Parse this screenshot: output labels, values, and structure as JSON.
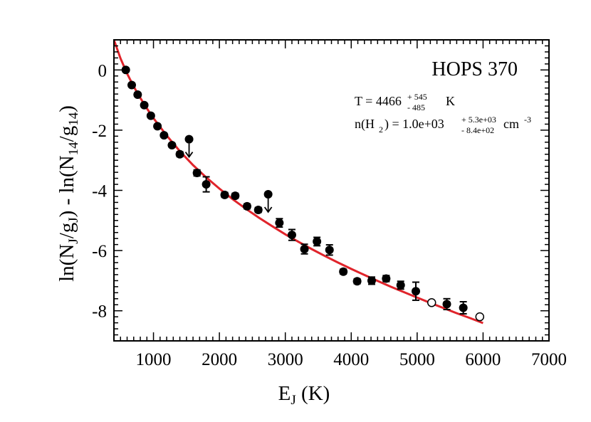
{
  "chart_data": {
    "type": "scatter",
    "title": "HOPS 370",
    "xlabel": {
      "base": "E",
      "sub": "J",
      "tail": " (K)"
    },
    "ylabel": {
      "p1": "ln(N",
      "s1": "J",
      "p2": "/g",
      "s2": "J",
      "p3": ") - ln(N",
      "s3": "14",
      "p4": "/g",
      "s4": "14",
      "p5": ")"
    },
    "xlim": [
      400,
      7000
    ],
    "ylim": [
      -9,
      1
    ],
    "xticks": [
      1000,
      2000,
      3000,
      4000,
      5000,
      6000,
      7000
    ],
    "yticks": [
      0,
      -2,
      -4,
      -6,
      -8
    ],
    "annotation": {
      "temp_prefix": "T = 4466",
      "temp_sup": "+ 545",
      "temp_sub": "- 485",
      "temp_unit": "K",
      "dens_prefix": "n(H",
      "dens_sub": "2",
      "dens_mid": ") =  1.0e+03",
      "dens_sup": "+ 5.3e+03",
      "dens_sub2": "- 8.4e+02",
      "dens_unit": "cm",
      "dens_unit_sup": "-3"
    },
    "detections": [
      {
        "x": 580,
        "y": 0.0,
        "err": 0.05
      },
      {
        "x": 670,
        "y": -0.5,
        "err": 0.05
      },
      {
        "x": 760,
        "y": -0.82,
        "err": 0.05
      },
      {
        "x": 860,
        "y": -1.17,
        "err": 0.05
      },
      {
        "x": 960,
        "y": -1.52,
        "err": 0.05
      },
      {
        "x": 1060,
        "y": -1.87,
        "err": 0.05
      },
      {
        "x": 1160,
        "y": -2.17,
        "err": 0.05
      },
      {
        "x": 1280,
        "y": -2.5,
        "err": 0.05
      },
      {
        "x": 1400,
        "y": -2.8,
        "err": 0.08
      },
      {
        "x": 1660,
        "y": -3.42,
        "err": 0.1
      },
      {
        "x": 1800,
        "y": -3.8,
        "err": 0.25
      },
      {
        "x": 2080,
        "y": -4.15,
        "err": 0.08
      },
      {
        "x": 2240,
        "y": -4.18,
        "err": 0.08
      },
      {
        "x": 2420,
        "y": -4.53,
        "err": 0.08
      },
      {
        "x": 2590,
        "y": -4.65,
        "err": 0.08
      },
      {
        "x": 2910,
        "y": -5.08,
        "err": 0.14
      },
      {
        "x": 3100,
        "y": -5.48,
        "err": 0.18
      },
      {
        "x": 3290,
        "y": -5.95,
        "err": 0.16
      },
      {
        "x": 3480,
        "y": -5.7,
        "err": 0.14
      },
      {
        "x": 3670,
        "y": -5.98,
        "err": 0.17
      },
      {
        "x": 3880,
        "y": -6.7,
        "err": 0.08
      },
      {
        "x": 4090,
        "y": -7.02,
        "err": 0.08
      },
      {
        "x": 4310,
        "y": -7.0,
        "err": 0.12
      },
      {
        "x": 4530,
        "y": -6.93,
        "err": 0.1
      },
      {
        "x": 4750,
        "y": -7.15,
        "err": 0.13
      },
      {
        "x": 4980,
        "y": -7.35,
        "err": 0.3
      },
      {
        "x": 5450,
        "y": -7.78,
        "err": 0.18
      },
      {
        "x": 5700,
        "y": -7.9,
        "err": 0.2
      }
    ],
    "upper_limits": [
      {
        "x": 1540,
        "y": -2.3
      },
      {
        "x": 2740,
        "y": -4.13
      }
    ],
    "open_points": [
      {
        "x": 5220,
        "y": -7.73
      },
      {
        "x": 5950,
        "y": -8.2
      }
    ],
    "model_curve": {
      "color": "#e0242b",
      "x": [
        400,
        500,
        600,
        700,
        800,
        900,
        1000,
        1200,
        1400,
        1600,
        1800,
        2000,
        2200,
        2400,
        2600,
        2800,
        3000,
        3200,
        3400,
        3600,
        3800,
        4000,
        4200,
        4400,
        4600,
        4800,
        5000,
        5200,
        5400,
        5600,
        5800,
        6000
      ],
      "y": [
        1.0,
        0.38,
        -0.12,
        -0.55,
        -0.93,
        -1.28,
        -1.6,
        -2.18,
        -2.7,
        -3.16,
        -3.57,
        -3.94,
        -4.29,
        -4.61,
        -4.91,
        -5.19,
        -5.46,
        -5.71,
        -5.95,
        -6.18,
        -6.4,
        -6.61,
        -6.81,
        -7.01,
        -7.2,
        -7.38,
        -7.56,
        -7.74,
        -7.91,
        -8.08,
        -8.24,
        -8.41
      ]
    }
  }
}
